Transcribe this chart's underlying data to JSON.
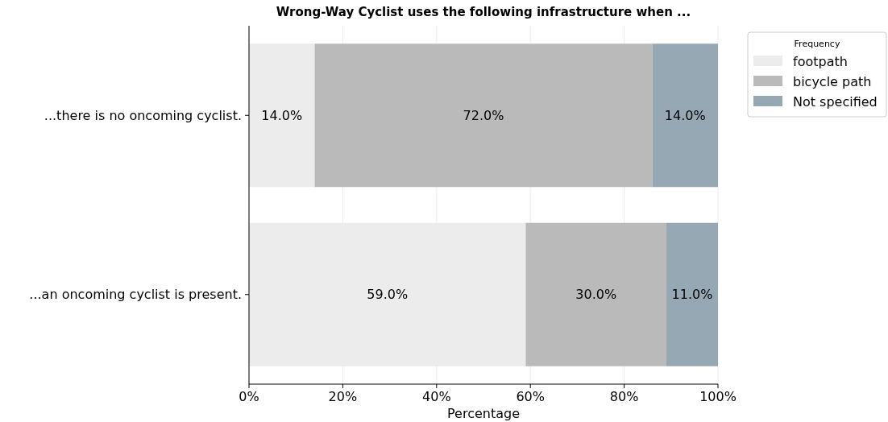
{
  "chart_data": {
    "type": "bar",
    "orientation": "horizontal",
    "stacked": true,
    "title": "Wrong-Way Cyclist uses the following infrastructure when ...",
    "xlabel": "Percentage",
    "legend_title": "Frequency",
    "legend": "top right",
    "grid": "x",
    "categories": [
      "...there is no oncoming cyclist.",
      "...an oncoming cyclist is present."
    ],
    "xlim": [
      0,
      100
    ],
    "xticks": [
      {
        "value": 0,
        "label": "0%"
      },
      {
        "value": 20,
        "label": "20%"
      },
      {
        "value": 40,
        "label": "40%"
      },
      {
        "value": 60,
        "label": "60%"
      },
      {
        "value": 80,
        "label": "80%"
      },
      {
        "value": 100,
        "label": "100%"
      }
    ],
    "series": [
      {
        "name": "footpath",
        "color": "#ececec",
        "values": [
          14,
          59
        ],
        "value_labels": [
          "14.0%",
          "59.0%"
        ]
      },
      {
        "name": "bicycle path",
        "color": "#bababa",
        "values": [
          72,
          30
        ],
        "value_labels": [
          "72.0%",
          "30.0%"
        ]
      },
      {
        "name": "Not specified",
        "color": "#97a8b5",
        "values": [
          14,
          11
        ],
        "value_labels": [
          "14.0%",
          "11.0%"
        ]
      }
    ]
  }
}
